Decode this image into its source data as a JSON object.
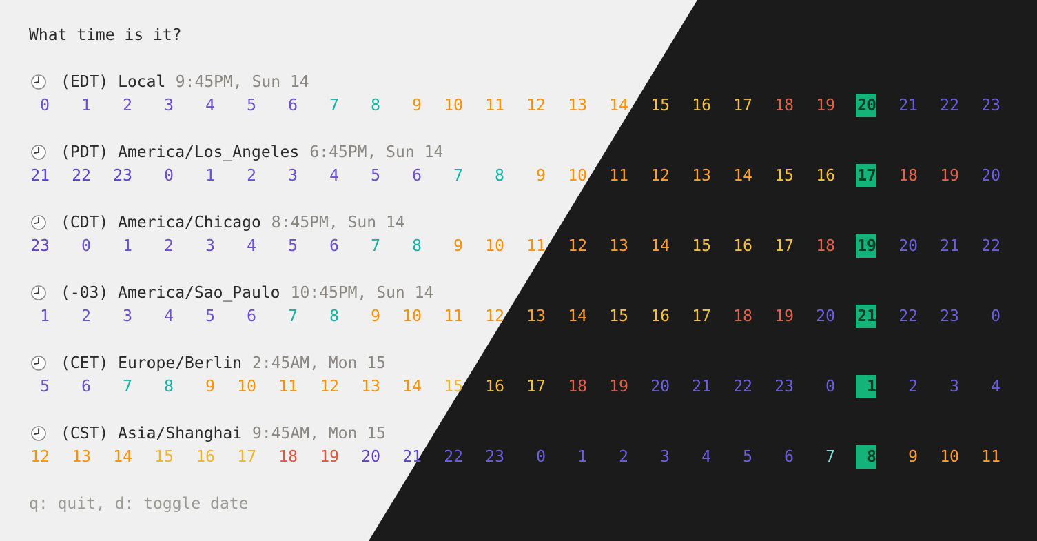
{
  "title": "What time is it?",
  "footer": "q: quit, d: toggle date",
  "current_column": 20,
  "colors": {
    "light_bg": "#f0f0f0",
    "dark_bg": "#1b1b1b",
    "light_text": "#2a2a2a",
    "dark_text": "#e6e6e6",
    "light_dim": "#8a8780",
    "dark_dim": "#b0b0b0",
    "footer": "#9a9a92",
    "highlight": "#13b37a",
    "night": "#6a4fd0",
    "dawn": "#12b3a2",
    "morning": "#ff9100",
    "day": "#f0b52a",
    "evening": "#e1553f",
    "light_night": "#5a3fd0",
    "dark_night": "#6a5fe0",
    "dark_dawn": "#7fe0d6",
    "dark_morning": "#ff9f2a",
    "dark_day": "#f5c13a",
    "dark_evening": "#e4614a",
    "current_text": "#0a3a2a"
  },
  "zones": [
    {
      "icon": "clock-icon",
      "abbr": "(EDT)",
      "name": "Local",
      "time": "9:45PM, Sun 14",
      "hours": [
        0,
        1,
        2,
        3,
        4,
        5,
        6,
        7,
        8,
        9,
        10,
        11,
        12,
        13,
        14,
        15,
        16,
        17,
        18,
        19,
        20,
        21,
        22,
        23
      ]
    },
    {
      "icon": "clock-icon",
      "abbr": "(PDT)",
      "name": "America/Los_Angeles",
      "time": "6:45PM, Sun 14",
      "hours": [
        21,
        22,
        23,
        0,
        1,
        2,
        3,
        4,
        5,
        6,
        7,
        8,
        9,
        10,
        11,
        12,
        13,
        14,
        15,
        16,
        17,
        18,
        19,
        20
      ]
    },
    {
      "icon": "clock-icon",
      "abbr": "(CDT)",
      "name": "America/Chicago",
      "time": "8:45PM, Sun 14",
      "hours": [
        23,
        0,
        1,
        2,
        3,
        4,
        5,
        6,
        7,
        8,
        9,
        10,
        11,
        12,
        13,
        14,
        15,
        16,
        17,
        18,
        19,
        20,
        21,
        22
      ]
    },
    {
      "icon": "clock-icon",
      "abbr": "(-03)",
      "name": "America/Sao_Paulo",
      "time": "10:45PM, Sun 14",
      "hours": [
        1,
        2,
        3,
        4,
        5,
        6,
        7,
        8,
        9,
        10,
        11,
        12,
        13,
        14,
        15,
        16,
        17,
        18,
        19,
        20,
        21,
        22,
        23,
        0
      ]
    },
    {
      "icon": "clock-icon",
      "abbr": "(CET)",
      "name": "Europe/Berlin",
      "time": "2:45AM, Mon 15",
      "hours": [
        5,
        6,
        7,
        8,
        9,
        10,
        11,
        12,
        13,
        14,
        15,
        16,
        17,
        18,
        19,
        20,
        21,
        22,
        23,
        0,
        1,
        2,
        3,
        4
      ]
    },
    {
      "icon": "clock-icon",
      "abbr": "(CST)",
      "name": "Asia/Shanghai",
      "time": "9:45AM, Mon 15",
      "hours": [
        12,
        13,
        14,
        15,
        16,
        17,
        18,
        19,
        20,
        21,
        22,
        23,
        0,
        1,
        2,
        3,
        4,
        5,
        6,
        7,
        8,
        9,
        10,
        11
      ]
    }
  ]
}
